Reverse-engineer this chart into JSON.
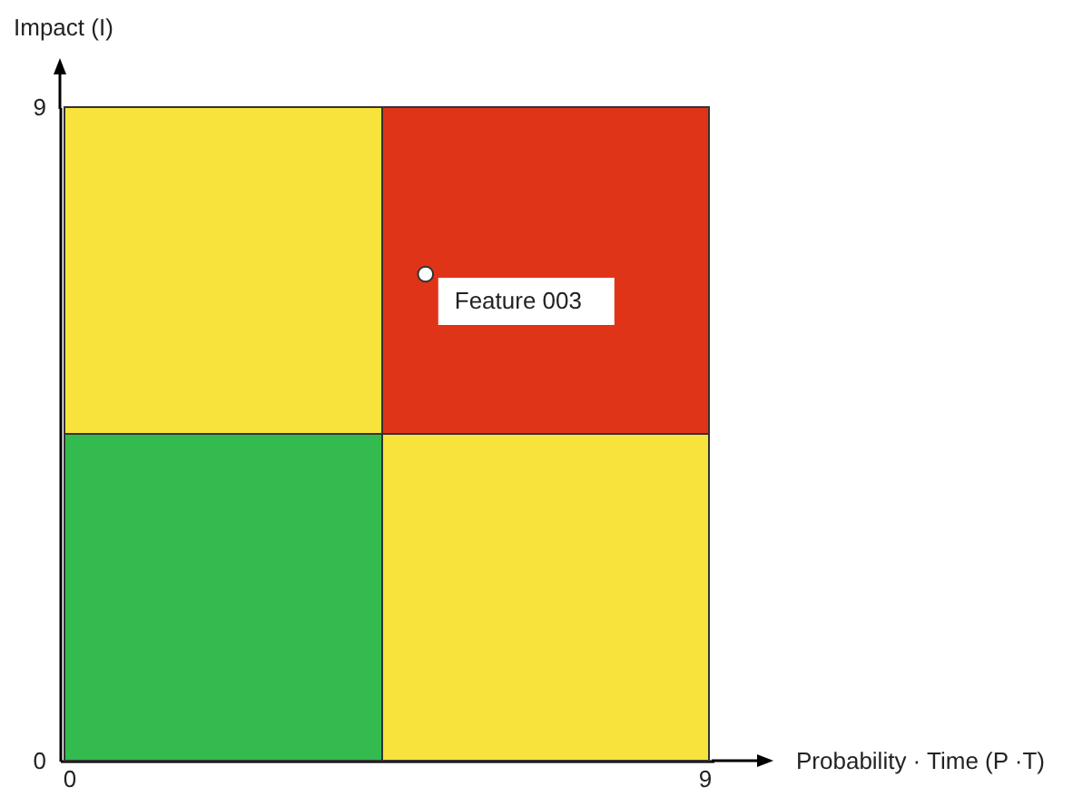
{
  "chart_data": {
    "type": "bar",
    "stacked": true,
    "xlabel": "Probability · Time (P ·T)",
    "ylabel": "Impact (I)",
    "x": [
      2.25,
      6.75
    ],
    "series": [
      {
        "colors": [
          "#33bb50",
          "#f7e33b"
        ],
        "values": [
          4.5,
          4.5
        ]
      },
      {
        "colors": [
          "#f7e33b",
          "#e03419"
        ],
        "values": [
          4.5,
          4.5
        ]
      },
      {
        "type": "scatter",
        "x": [
          5.05
        ],
        "values": [
          6.7
        ],
        "color": "#ffffff",
        "marker": "circle"
      }
    ],
    "annotations": [
      {
        "text": "Feature 003",
        "x": 5.05,
        "y": 6.7
      }
    ],
    "xlim": [
      0,
      9
    ],
    "ylim": [
      0,
      9
    ],
    "xticks": [
      0,
      9
    ],
    "yticks": [
      0,
      9
    ],
    "grid": false
  }
}
